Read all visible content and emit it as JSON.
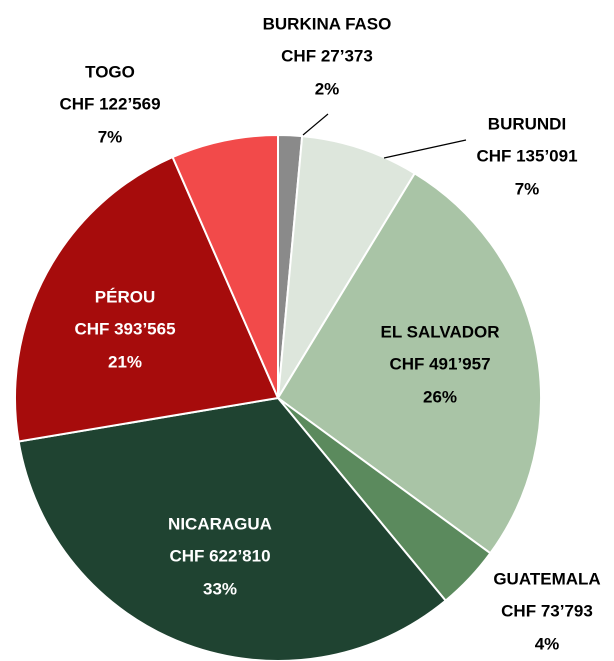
{
  "chart_data": {
    "type": "pie",
    "categories": [
      "BURKINA FASO",
      "BURUNDI",
      "EL SALVADOR",
      "GUATEMALA",
      "NICARAGUA",
      "PÉROU",
      "TOGO"
    ],
    "values": [
      27373,
      135091,
      491957,
      73793,
      622810,
      393565,
      122569
    ],
    "value_labels": [
      "CHF 27’373",
      "CHF 135’091",
      "CHF 491’957",
      "CHF 73’793",
      "CHF 622’810",
      "CHF 393’565",
      "CHF 122’569"
    ],
    "percent_labels": [
      "2%",
      "7%",
      "26%",
      "4%",
      "33%",
      "21%",
      "7%"
    ],
    "colors": [
      "#8a8a8a",
      "#dde6dc",
      "#a9c4a6",
      "#5b8a5d",
      "#1f4331",
      "#a60c0c",
      "#f24a4a"
    ],
    "label_colors": [
      "#000000",
      "#000000",
      "#000000",
      "#000000",
      "#ffffff",
      "#ffffff",
      "#000000"
    ],
    "start_angle": 0,
    "direction": "clockwise"
  }
}
